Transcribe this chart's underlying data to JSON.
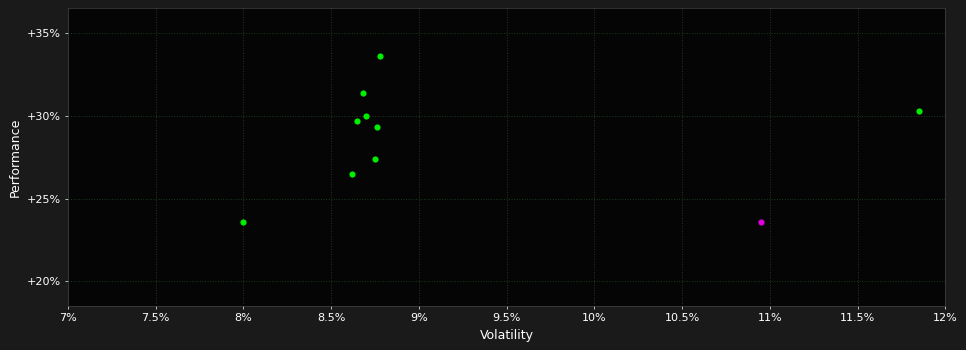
{
  "background_color": "#1a1a1a",
  "plot_bg_color": "#050505",
  "grid_color": "#1e3a1e",
  "xlabel": "Volatility",
  "ylabel": "Performance",
  "x_ticks": [
    0.07,
    0.075,
    0.08,
    0.085,
    0.09,
    0.095,
    0.1,
    0.105,
    0.11,
    0.115,
    0.12
  ],
  "x_tick_labels": [
    "7%",
    "7.5%",
    "8%",
    "8.5%",
    "9%",
    "9.5%",
    "10%",
    "10.5%",
    "11%",
    "11.5%",
    "12%"
  ],
  "y_ticks": [
    0.2,
    0.25,
    0.3,
    0.35
  ],
  "y_tick_labels": [
    "+20%",
    "+25%",
    "+30%",
    "+35%"
  ],
  "xlim": [
    0.07,
    0.12
  ],
  "ylim": [
    0.185,
    0.365
  ],
  "green_points": [
    [
      0.0878,
      0.336
    ],
    [
      0.0868,
      0.314
    ],
    [
      0.087,
      0.3
    ],
    [
      0.0865,
      0.297
    ],
    [
      0.0876,
      0.293
    ],
    [
      0.0875,
      0.274
    ],
    [
      0.0862,
      0.265
    ],
    [
      0.08,
      0.236
    ],
    [
      0.1185,
      0.303
    ]
  ],
  "magenta_points": [
    [
      0.1095,
      0.236
    ]
  ],
  "dot_color_green": "#00ee00",
  "dot_color_magenta": "#dd00dd",
  "dot_size": 20,
  "tick_fontsize": 8,
  "label_fontsize": 9,
  "label_color": "#ffffff",
  "tick_color": "#ffffff",
  "spine_color": "#444444"
}
